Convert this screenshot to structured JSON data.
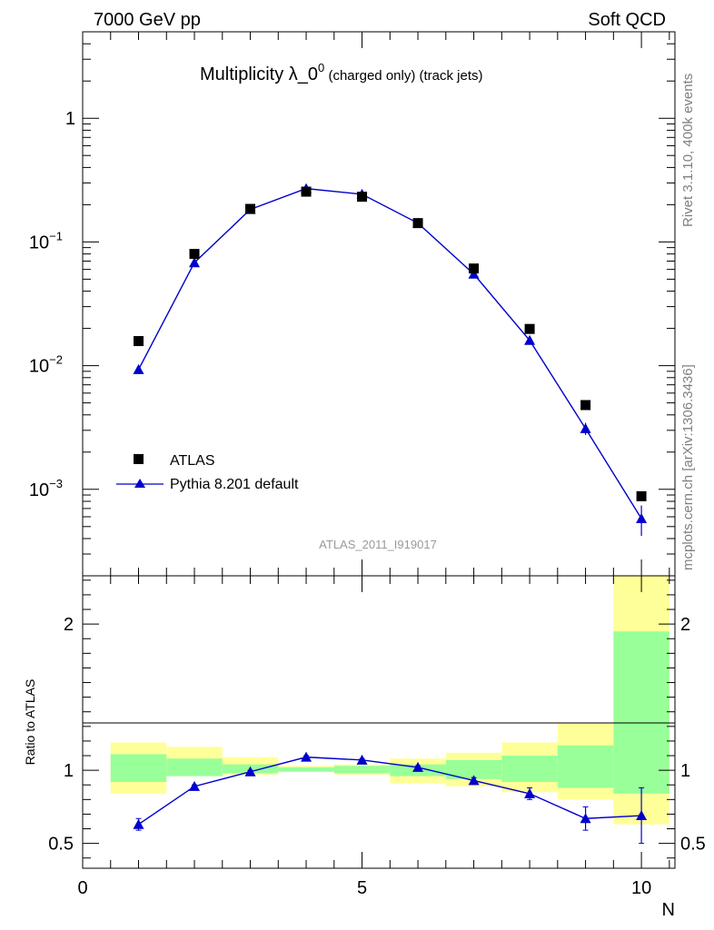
{
  "header": {
    "left_label": "7000 GeV pp",
    "right_label": "Soft QCD"
  },
  "title": {
    "main": "Multiplicity λ_0",
    "superscript": "0",
    "suffix": " (charged only) (track jets)"
  },
  "side_labels": {
    "rivet": "Rivet 3.1.10,  400k events",
    "mcplots": "mcplots.cern.ch [arXiv:1306.3436]"
  },
  "analysis_tag": "ATLAS_2011_I919017",
  "colors": {
    "data_marker": "#000000",
    "mc_line": "#0000cc",
    "band_inner": "#99ff99",
    "band_outer": "#ffff99"
  },
  "chart_data": [
    {
      "type": "scatter",
      "panel": "main",
      "log_y": true,
      "xlim": [
        0,
        10.6
      ],
      "ylim": [
        0.0002,
        5
      ],
      "y_ticks": [
        {
          "value": 0.001,
          "base": "10",
          "exp": "−3"
        },
        {
          "value": 0.01,
          "base": "10",
          "exp": "−2"
        },
        {
          "value": 0.1,
          "base": "10",
          "exp": "−1"
        },
        {
          "value": 1,
          "label": "1"
        }
      ],
      "series": [
        {
          "name": "ATLAS",
          "marker": "square",
          "x": [
            1,
            2,
            3,
            4,
            5,
            6,
            7,
            8,
            9,
            10
          ],
          "y": [
            0.0158,
            0.08,
            0.185,
            0.255,
            0.232,
            0.142,
            0.061,
            0.0198,
            0.0048,
            0.00088
          ]
        },
        {
          "name": "Pythia 8.201 default",
          "marker": "triangle",
          "x": [
            1,
            2,
            3,
            4,
            5,
            6,
            7,
            8,
            9,
            10
          ],
          "y": [
            0.0093,
            0.068,
            0.183,
            0.27,
            0.243,
            0.142,
            0.055,
            0.016,
            0.0031,
            0.00058
          ],
          "yerr": [
            0.0002,
            0.001,
            0.002,
            0.003,
            0.003,
            0.002,
            0.001,
            0.0008,
            0.00035,
            0.00016
          ]
        }
      ],
      "legend": {
        "placement": "lower-left"
      }
    },
    {
      "type": "line",
      "panel": "ratio",
      "ylabel": "Ratio to ATLAS",
      "xlabel": "N",
      "xlim": [
        0,
        10.6
      ],
      "ylim": [
        0.33,
        2.33
      ],
      "x_ticks": [
        {
          "value": 0,
          "label": "0"
        },
        {
          "value": 5,
          "label": "5"
        },
        {
          "value": 10,
          "label": "10"
        }
      ],
      "y_ticks": [
        {
          "value": 0.5,
          "label": "0.5"
        },
        {
          "value": 1,
          "label": "1"
        },
        {
          "value": 2,
          "label": "2"
        }
      ],
      "bands": [
        {
          "x0": 0.5,
          "x1": 1.5,
          "inner": [
            0.92,
            1.11
          ],
          "outer": [
            0.84,
            1.19
          ]
        },
        {
          "x0": 1.5,
          "x1": 2.5,
          "inner": [
            0.96,
            1.08
          ],
          "outer": [
            0.96,
            1.16
          ]
        },
        {
          "x0": 2.5,
          "x1": 3.5,
          "inner": [
            0.98,
            1.04
          ],
          "outer": [
            0.97,
            1.09
          ]
        },
        {
          "x0": 3.5,
          "x1": 4.5,
          "inner": [
            0.99,
            1.02
          ],
          "outer": [
            0.99,
            1.03
          ]
        },
        {
          "x0": 4.5,
          "x1": 5.5,
          "inner": [
            0.98,
            1.03
          ],
          "outer": [
            0.97,
            1.04
          ]
        },
        {
          "x0": 5.5,
          "x1": 6.5,
          "inner": [
            0.96,
            1.04
          ],
          "outer": [
            0.91,
            1.08
          ]
        },
        {
          "x0": 6.5,
          "x1": 7.5,
          "inner": [
            0.94,
            1.07
          ],
          "outer": [
            0.89,
            1.12
          ]
        },
        {
          "x0": 7.5,
          "x1": 8.5,
          "inner": [
            0.92,
            1.1
          ],
          "outer": [
            0.85,
            1.19
          ]
        },
        {
          "x0": 8.5,
          "x1": 9.5,
          "inner": [
            0.88,
            1.17
          ],
          "outer": [
            0.8,
            1.32
          ]
        },
        {
          "x0": 9.5,
          "x1": 10.5,
          "inner": [
            0.84,
            1.95
          ],
          "outer": [
            0.63,
            2.33
          ]
        }
      ],
      "series": [
        {
          "name": "Pythia 8.201 default",
          "x": [
            1,
            2,
            3,
            4,
            5,
            6,
            7,
            8,
            9,
            10
          ],
          "y": [
            0.63,
            0.89,
            0.99,
            1.09,
            1.07,
            1.02,
            0.93,
            0.84,
            0.67,
            0.69
          ],
          "yerr": [
            0.04,
            0.01,
            0.01,
            0.01,
            0.01,
            0.01,
            0.02,
            0.04,
            0.08,
            0.19
          ]
        }
      ]
    }
  ]
}
